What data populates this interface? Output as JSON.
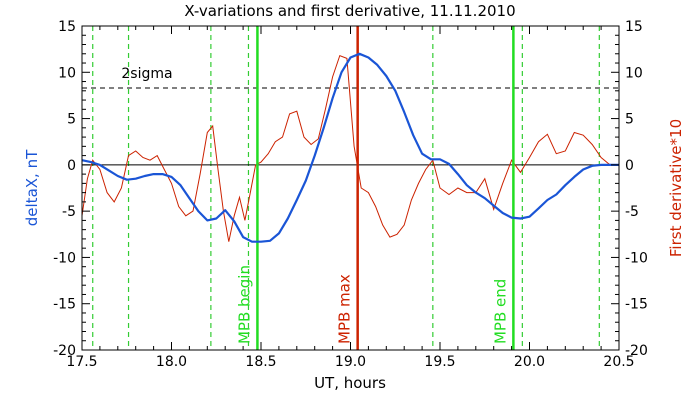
{
  "chart_data": {
    "type": "line",
    "title": "X-variations and first derivative, 11.11.2010",
    "xlabel": "UT, hours",
    "ylabel_left": "deltaX, nT",
    "ylabel_right": "First derivative*10",
    "xlim": [
      17.5,
      20.5
    ],
    "ylim_left": [
      -20,
      15
    ],
    "ylim_right": [
      -20,
      15
    ],
    "x_ticks": [
      "17.5",
      "18.0",
      "18.5",
      "19.0",
      "19.5",
      "20.0",
      "20.5"
    ],
    "y_ticks_left": [
      "-20",
      "-15",
      "-10",
      "-5",
      "0",
      "5",
      "10",
      "15"
    ],
    "y_ticks_right": [
      "-20",
      "-15",
      "-10",
      "-5",
      "0",
      "5",
      "10",
      "15"
    ],
    "colors": {
      "deltaX": "#1a55d6",
      "derivative": "#cc2200",
      "mpb_edge": "#22dd22",
      "mpb_max": "#cc2200",
      "dashed_green": "#33cc33",
      "axis": "#000000"
    },
    "sigma_level": 8.3,
    "sigma_label": "2sigma",
    "zero_line": 0,
    "dashed_verticals_x": [
      17.56,
      17.76,
      18.22,
      18.43,
      19.46,
      19.96,
      20.39
    ],
    "markers": [
      {
        "x": 18.48,
        "label": "MPB begin",
        "kind": "edge"
      },
      {
        "x": 19.04,
        "label": "MPB max",
        "kind": "max"
      },
      {
        "x": 19.91,
        "label": "MPB end",
        "kind": "edge"
      }
    ],
    "series": [
      {
        "name": "deltaX, nT",
        "axis": "left",
        "x": [
          17.5,
          17.55,
          17.6,
          17.65,
          17.7,
          17.75,
          17.8,
          17.85,
          17.9,
          17.95,
          18.0,
          18.05,
          18.1,
          18.15,
          18.2,
          18.25,
          18.3,
          18.35,
          18.4,
          18.45,
          18.5,
          18.55,
          18.6,
          18.65,
          18.7,
          18.75,
          18.8,
          18.85,
          18.9,
          18.95,
          19.0,
          19.05,
          19.1,
          19.15,
          19.2,
          19.25,
          19.3,
          19.35,
          19.4,
          19.45,
          19.5,
          19.55,
          19.6,
          19.65,
          19.7,
          19.75,
          19.8,
          19.85,
          19.9,
          19.95,
          20.0,
          20.05,
          20.1,
          20.15,
          20.2,
          20.25,
          20.3,
          20.35,
          20.4,
          20.45,
          20.5
        ],
        "y": [
          0.5,
          0.3,
          0.0,
          -0.6,
          -1.2,
          -1.6,
          -1.5,
          -1.2,
          -1.0,
          -1.0,
          -1.3,
          -2.2,
          -3.6,
          -5.0,
          -6.0,
          -5.8,
          -4.9,
          -6.1,
          -7.8,
          -8.3,
          -8.3,
          -8.2,
          -7.4,
          -5.8,
          -3.8,
          -1.7,
          1.0,
          4.0,
          7.2,
          10.0,
          11.6,
          12.0,
          11.6,
          10.8,
          9.6,
          8.0,
          5.7,
          3.2,
          1.2,
          0.6,
          0.6,
          0.1,
          -1.0,
          -2.2,
          -3.0,
          -3.6,
          -4.4,
          -5.2,
          -5.7,
          -5.8,
          -5.6,
          -4.7,
          -3.8,
          -3.2,
          -2.2,
          -1.3,
          -0.5,
          -0.1,
          0.0,
          0.0,
          0.0
        ]
      },
      {
        "name": "First derivative*10",
        "axis": "right",
        "x": [
          17.5,
          17.53,
          17.56,
          17.6,
          17.64,
          17.68,
          17.72,
          17.76,
          17.8,
          17.84,
          17.88,
          17.92,
          17.96,
          18.0,
          18.04,
          18.08,
          18.12,
          18.16,
          18.2,
          18.23,
          18.26,
          18.29,
          18.32,
          18.35,
          18.38,
          18.41,
          18.44,
          18.47,
          18.5,
          18.54,
          18.58,
          18.62,
          18.66,
          18.7,
          18.74,
          18.78,
          18.82,
          18.86,
          18.9,
          18.94,
          18.98,
          19.02,
          19.06,
          19.1,
          19.14,
          19.18,
          19.22,
          19.26,
          19.3,
          19.34,
          19.38,
          19.42,
          19.46,
          19.5,
          19.55,
          19.6,
          19.65,
          19.7,
          19.75,
          19.8,
          19.85,
          19.9,
          19.95,
          20.0,
          20.05,
          20.1,
          20.15,
          20.2,
          20.25,
          20.3,
          20.35,
          20.4,
          20.45,
          20.5
        ],
        "y": [
          -5.5,
          -1.5,
          0.5,
          -0.5,
          -3.0,
          -4.0,
          -2.5,
          1.0,
          1.5,
          0.8,
          0.5,
          1.0,
          -0.5,
          -2.0,
          -4.5,
          -5.5,
          -5.0,
          -1.0,
          3.5,
          4.2,
          -0.5,
          -5.0,
          -8.3,
          -5.5,
          -3.5,
          -6.0,
          -3.0,
          0.0,
          0.3,
          1.2,
          2.5,
          3.0,
          5.5,
          5.8,
          3.0,
          2.2,
          2.8,
          6.0,
          9.5,
          11.8,
          11.5,
          2.0,
          -2.5,
          -3.0,
          -4.5,
          -6.5,
          -7.8,
          -7.5,
          -6.5,
          -3.8,
          -2.0,
          -0.5,
          0.5,
          -2.5,
          -3.2,
          -2.5,
          -3.0,
          -3.0,
          -1.5,
          -4.8,
          -2.0,
          0.5,
          -0.8,
          0.8,
          2.5,
          3.3,
          1.2,
          1.5,
          3.5,
          3.2,
          2.2,
          0.8,
          0.0,
          0.0
        ]
      }
    ]
  }
}
